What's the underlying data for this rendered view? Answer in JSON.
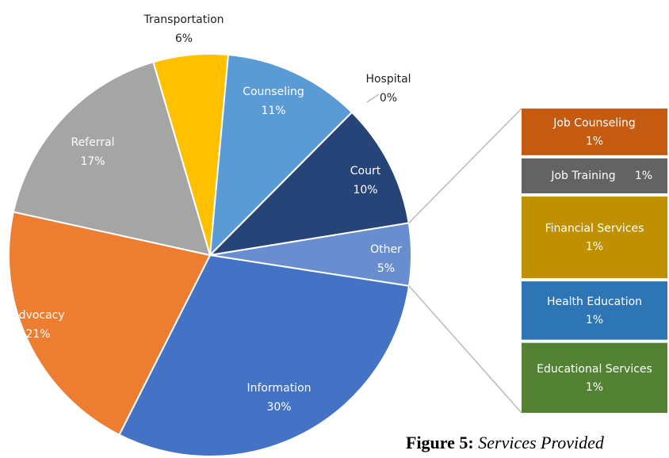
{
  "chart_data": {
    "type": "pie-of-bar",
    "categories": [
      "Transportation",
      "Counseling",
      "Hospital",
      "Court",
      "Other",
      "Information",
      "Advocacy",
      "Referral"
    ],
    "values": [
      6,
      11,
      0,
      10,
      5,
      30,
      21,
      17
    ],
    "value_labels": [
      "6%",
      "11%",
      "0%",
      "10%",
      "5%",
      "30%",
      "21%",
      "17%"
    ],
    "colors": [
      "#ffc000",
      "#5b9bd5",
      "#a5a5a5",
      "#264478",
      "#698ed0",
      "#4472c4",
      "#ed7d31",
      "#a5a5a5"
    ],
    "breakout": {
      "categories": [
        "Job Counseling",
        "Job Training",
        "Financial Services",
        "Health Education",
        "Educational Services"
      ],
      "values": [
        0.8,
        0.6,
        1.4,
        1.0,
        1.2
      ],
      "value_labels": [
        "1%",
        "1%",
        "1%",
        "1%",
        "1%"
      ],
      "colors": [
        "#c55a11",
        "#636363",
        "#bf9000",
        "#2e75b6",
        "#548235"
      ]
    },
    "caption": {
      "label": "Figure 5:",
      "text": "Services Provided"
    }
  }
}
